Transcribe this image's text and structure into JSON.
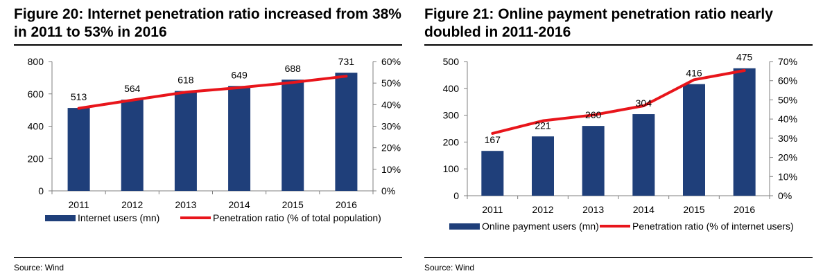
{
  "charts": [
    {
      "figure_title": "Figure 20: Internet penetration ratio increased from 38% in 2011 to 53% in 2016",
      "source": "Source: Wind"
    },
    {
      "figure_title": "Figure 21: Online payment penetration ratio nearly doubled in 2011-2016",
      "source": "Source: Wind"
    }
  ],
  "colors": {
    "bar": "#1F3F7A",
    "line": "#E8151B",
    "axis": "#7F7F7F"
  },
  "chart_data": [
    {
      "type": "bar",
      "title": "Figure 20: Internet penetration ratio increased from 38% in 2011 to 53% in 2016",
      "categories": [
        "2011",
        "2012",
        "2013",
        "2014",
        "2015",
        "2016"
      ],
      "series": [
        {
          "name": "Internet users (mn)",
          "type": "bar",
          "axis": "left",
          "values": [
            513,
            564,
            618,
            649,
            688,
            731
          ],
          "data_labels": [
            "513",
            "564",
            "618",
            "649",
            "688",
            "731"
          ]
        },
        {
          "name": "Penetration ratio (% of total population)",
          "type": "line",
          "axis": "right",
          "values": [
            38.3,
            42.1,
            45.8,
            47.9,
            50.3,
            53.2
          ]
        }
      ],
      "y_left": {
        "min": 0,
        "max": 800,
        "ticks": [
          0,
          200,
          400,
          600,
          800
        ],
        "tick_labels": [
          "0",
          "200",
          "400",
          "600",
          "800"
        ]
      },
      "y_right": {
        "min": 0,
        "max": 60,
        "ticks": [
          0,
          10,
          20,
          30,
          40,
          50,
          60
        ],
        "tick_labels": [
          "0%",
          "10%",
          "20%",
          "30%",
          "40%",
          "50%",
          "60%"
        ]
      },
      "grid": false,
      "legend": "bottom"
    },
    {
      "type": "bar",
      "title": "Figure 21: Online payment penetration ratio nearly doubled in 2011-2016",
      "categories": [
        "2011",
        "2012",
        "2013",
        "2014",
        "2015",
        "2016"
      ],
      "series": [
        {
          "name": "Online payment users (mn)",
          "type": "bar",
          "axis": "left",
          "values": [
            167,
            221,
            260,
            304,
            416,
            475
          ],
          "data_labels": [
            "167",
            "221",
            "260",
            "304",
            "416",
            "475"
          ]
        },
        {
          "name": "Penetration ratio (% of internet users)",
          "type": "line",
          "axis": "right",
          "values": [
            32.5,
            39.1,
            42.1,
            46.9,
            60.5,
            65.3
          ]
        }
      ],
      "y_left": {
        "min": 0,
        "max": 500,
        "ticks": [
          0,
          100,
          200,
          300,
          400,
          500
        ],
        "tick_labels": [
          "0",
          "100",
          "200",
          "300",
          "400",
          "500"
        ]
      },
      "y_right": {
        "min": 0,
        "max": 70,
        "ticks": [
          0,
          10,
          20,
          30,
          40,
          50,
          60,
          70
        ],
        "tick_labels": [
          "0%",
          "10%",
          "20%",
          "30%",
          "40%",
          "50%",
          "60%",
          "70%"
        ]
      },
      "grid": false,
      "legend": "bottom"
    }
  ]
}
